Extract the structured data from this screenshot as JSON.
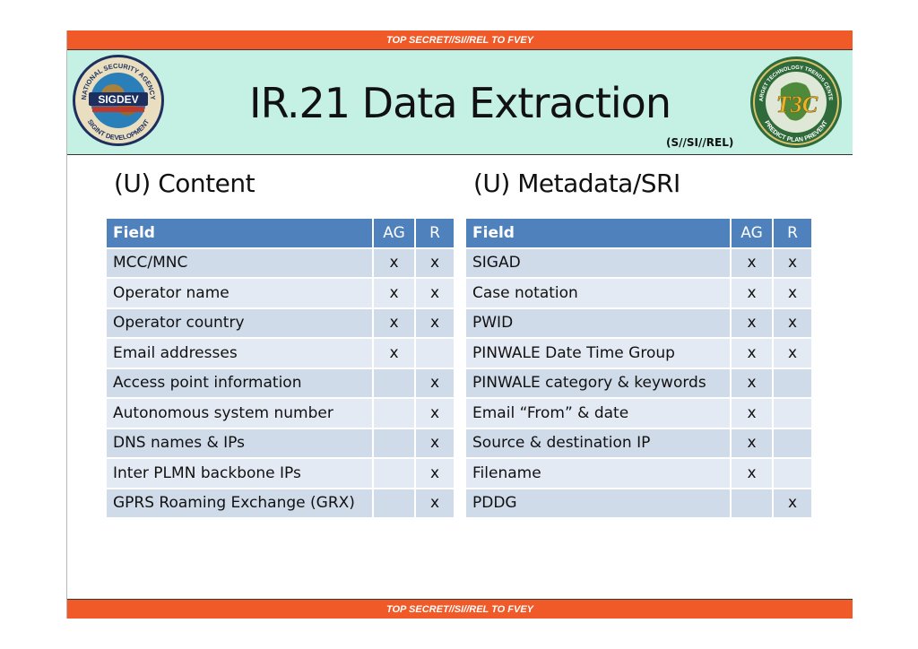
{
  "banner_top": "TOP SECRET//SI//REL TO FVEY",
  "banner_bottom": "TOP SECRET//SI//REL TO FVEY",
  "title": "IR.21 Data Extraction",
  "classification": "(S//SI//REL)",
  "logos": {
    "left": {
      "icon": "sigdev-seal-icon",
      "text": "SIGDEV",
      "ring_top": "NATIONAL SECURITY AGENCY",
      "ring_bottom": "SIGINT DEVELOPMENT"
    },
    "right": {
      "icon": "ttc-seal-icon",
      "text": "T3C",
      "ring_top": "TARGET TECHNOLOGY TRENDS CENTER",
      "ring_bottom": "PREDICT PLAN PREVENT"
    }
  },
  "colors": {
    "banner": "#ef5a28",
    "header_bg": "#c4f1e3",
    "table_header": "#4f81bd",
    "row_light": "#e4eaf3",
    "row_dark": "#d0dbea"
  },
  "content": {
    "heading": "(U) Content",
    "columns": [
      "Field",
      "AG",
      "R"
    ],
    "rows": [
      [
        "MCC/MNC",
        "x",
        "x"
      ],
      [
        "Operator name",
        "x",
        "x"
      ],
      [
        "Operator country",
        "x",
        "x"
      ],
      [
        "Email addresses",
        "x",
        ""
      ],
      [
        "Access point information",
        "",
        "x"
      ],
      [
        "Autonomous system number",
        "",
        "x"
      ],
      [
        "DNS names & IPs",
        "",
        "x"
      ],
      [
        "Inter PLMN backbone IPs",
        "",
        "x"
      ],
      [
        "GPRS Roaming Exchange (GRX)",
        "",
        "x"
      ]
    ]
  },
  "metadata": {
    "heading": "(U) Metadata/SRI",
    "columns": [
      "Field",
      "AG",
      "R"
    ],
    "rows": [
      [
        "SIGAD",
        "x",
        "x"
      ],
      [
        "Case notation",
        "x",
        "x"
      ],
      [
        "PWID",
        "x",
        "x"
      ],
      [
        "PINWALE Date Time Group",
        "x",
        "x"
      ],
      [
        "PINWALE category & keywords",
        "x",
        ""
      ],
      [
        "Email “From” & date",
        "x",
        ""
      ],
      [
        "Source & destination IP",
        "x",
        ""
      ],
      [
        "Filename",
        "x",
        ""
      ],
      [
        "PDDG",
        "",
        "x"
      ]
    ]
  }
}
